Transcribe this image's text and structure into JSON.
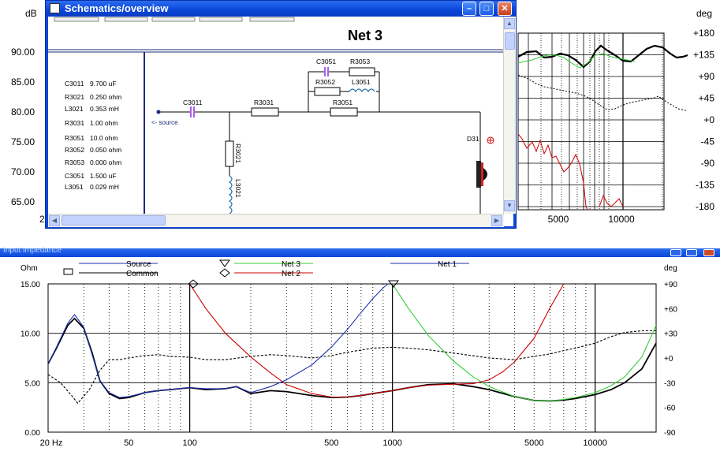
{
  "top_chart": {
    "left_axis_unit": "dB",
    "right_axis_unit": "deg",
    "left_ticks": [
      "90.00",
      "85.00",
      "80.00",
      "75.00",
      "70.00",
      "65.00"
    ],
    "left_partial_tick": "2",
    "right_ticks": [
      "+180",
      "+135",
      "+90",
      "+45",
      "+0",
      "-45",
      "-90",
      "-135",
      "-180"
    ],
    "x_ticks": [
      "5000",
      "10000"
    ]
  },
  "schematic_window": {
    "title": "Schematics/overview",
    "net_title": "Net 3",
    "component_list": [
      {
        "name": "C3011",
        "value": "9.700 uF"
      },
      {
        "name": "R3021",
        "value": "0.250 ohm"
      },
      {
        "name": "L3021",
        "value": "0.353 mH"
      },
      {
        "name": "R3031",
        "value": "1.00 ohm"
      },
      {
        "name": "R3051",
        "value": "10.0 ohm"
      },
      {
        "name": "R3052",
        "value": "0.050 ohm"
      },
      {
        "name": "R3053",
        "value": "0.000 ohm"
      },
      {
        "name": "C3051",
        "value": "1.500 uF"
      },
      {
        "name": "L3051",
        "value": "0.029 mH"
      }
    ],
    "schematic_labels": {
      "c3011": "C3011",
      "r3031": "R3031",
      "r3021": "R3021",
      "l3021": "L3021",
      "c3051": "C3051",
      "r3053": "R3053",
      "r3052": "R3052",
      "l3051": "L3051",
      "r3051": "R3051",
      "d31": "D31",
      "source": "<- source"
    }
  },
  "bottom_window": {
    "title": "Input impedance"
  },
  "chart_data": {
    "type": "line",
    "title": "",
    "ylabel": "Ohm",
    "y2label": "deg",
    "xscale": "log",
    "xlim": [
      20,
      20000
    ],
    "ylim": [
      0,
      15
    ],
    "y2lim": [
      -90,
      90
    ],
    "grid": true,
    "x_ticks": [
      "20 Hz",
      "50",
      "100",
      "500",
      "1000",
      "5000",
      "10000"
    ],
    "y_ticks": [
      "15.00",
      "10.00",
      "5.00",
      "0.00"
    ],
    "y2_ticks": [
      "+90",
      "+60",
      "+30",
      "+0",
      "-30",
      "-60",
      "-90"
    ],
    "legend": [
      "Source",
      "Common",
      "Net 3",
      "Net 2",
      "Net 1"
    ],
    "series": [
      {
        "name": "Source",
        "axis": "ohm",
        "color": "#000000",
        "x": [
          20,
          22,
          25,
          27,
          30,
          33,
          36,
          40,
          45,
          50,
          60,
          70,
          80,
          100,
          120,
          150,
          170,
          200,
          250,
          300,
          400,
          500,
          600,
          700,
          800,
          1000,
          1200,
          1500,
          2000,
          2500,
          3000,
          4000,
          5000,
          6000,
          7000,
          8000,
          10000,
          12000,
          14000,
          17000,
          20000
        ],
        "y": [
          6.9,
          8.5,
          10.8,
          11.5,
          10.5,
          8.0,
          5.2,
          3.9,
          3.4,
          3.5,
          4.0,
          4.2,
          4.3,
          4.5,
          4.3,
          4.4,
          4.6,
          3.9,
          4.2,
          4.1,
          3.7,
          3.5,
          3.55,
          3.7,
          3.9,
          4.2,
          4.5,
          4.8,
          4.9,
          4.6,
          4.3,
          3.6,
          3.2,
          3.15,
          3.25,
          3.4,
          3.8,
          4.3,
          5.0,
          6.4,
          9.0
        ]
      },
      {
        "name": "Common",
        "axis": "deg",
        "color": "#000000",
        "dash": true,
        "x": [
          20,
          23,
          26,
          28,
          32,
          36,
          40,
          45,
          50,
          60,
          70,
          80,
          100,
          120,
          150,
          200,
          250,
          300,
          400,
          500,
          600,
          800,
          1000,
          1200,
          1500,
          2000,
          3000,
          4000,
          5000,
          6000,
          7000,
          8000,
          10000,
          12000,
          14000,
          17000,
          20000
        ],
        "y": [
          -20,
          -30,
          -45,
          -55,
          -38,
          -15,
          -2,
          -2,
          0,
          3,
          4,
          2,
          1,
          -2,
          -2,
          2,
          4,
          3,
          0,
          3,
          7,
          12,
          13,
          12,
          10,
          6,
          0,
          -2,
          2,
          5,
          9,
          12,
          18,
          26,
          31,
          33,
          33
        ]
      },
      {
        "name": "Net 3",
        "axis": "ohm",
        "color": "#33cc33",
        "x": [
          1000,
          1200,
          1500,
          2000,
          2500,
          3000,
          4000,
          5000,
          6000,
          7000,
          8000,
          10000,
          12000,
          14000,
          17000,
          20000
        ],
        "y": [
          15.0,
          12.5,
          9.8,
          7.2,
          5.6,
          4.6,
          3.6,
          3.2,
          3.15,
          3.3,
          3.5,
          4.0,
          4.7,
          5.6,
          7.6,
          10.8
        ]
      },
      {
        "name": "Net 2",
        "axis": "ohm",
        "color": "#cc0000",
        "x": [
          100,
          120,
          150,
          200,
          250,
          300,
          400,
          500,
          600,
          700,
          800,
          1000,
          1200,
          1500,
          2000,
          2500,
          3000,
          3500,
          4000,
          5000,
          6000,
          7000
        ],
        "y": [
          15.0,
          12.5,
          10.0,
          7.6,
          6.0,
          4.8,
          3.9,
          3.55,
          3.55,
          3.7,
          3.9,
          4.2,
          4.5,
          4.75,
          4.85,
          4.9,
          5.3,
          6.1,
          7.1,
          9.5,
          12.6,
          15.0
        ]
      },
      {
        "name": "Net 1",
        "axis": "ohm",
        "color": "#1d2fb0",
        "x": [
          20,
          22,
          25,
          27,
          30,
          33,
          36,
          40,
          45,
          50,
          60,
          70,
          80,
          100,
          120,
          150,
          170,
          200,
          250,
          300,
          400,
          500,
          600,
          700,
          800,
          900,
          950
        ],
        "y": [
          6.9,
          8.6,
          11.0,
          11.9,
          10.6,
          7.8,
          5.2,
          4.0,
          3.5,
          3.6,
          4.0,
          4.2,
          4.3,
          4.5,
          4.4,
          4.4,
          4.6,
          4.0,
          4.6,
          5.3,
          6.8,
          8.6,
          10.4,
          12.1,
          13.5,
          14.6,
          15.0
        ]
      }
    ]
  }
}
